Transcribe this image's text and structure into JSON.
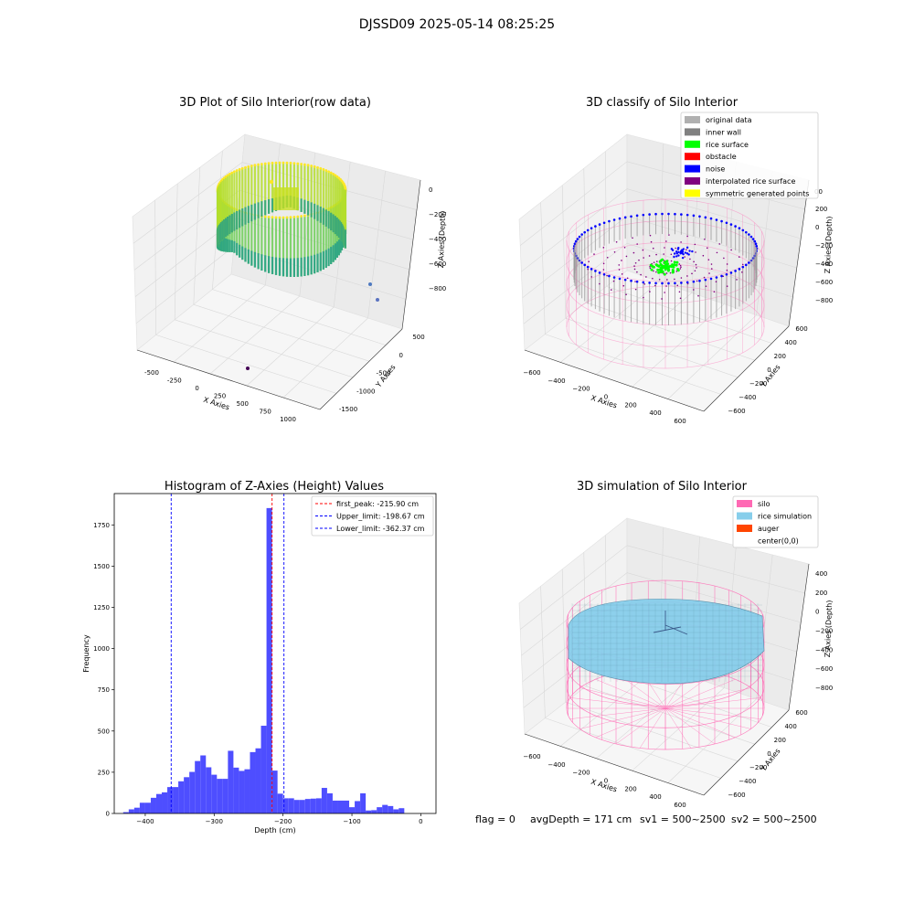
{
  "figure": {
    "suptitle": "DJSSD09 2025-05-14 08:25:25",
    "footer": {
      "flag": "flag = 0",
      "avg_depth": "avgDepth = 171 cm",
      "sv1": "sv1 = 500~2500",
      "sv2": "sv2 = 500~2500"
    }
  },
  "chart_data": [
    {
      "type": "scatter",
      "title": "3D Plot of Silo Interior(row data)",
      "xlabel": "X Axies",
      "ylabel": "Y Axies",
      "zlabel": "Z Axies (Depth)",
      "x_ticks": [
        "-500",
        "-250",
        "0",
        "250",
        "500",
        "750",
        "1000"
      ],
      "y_ticks": [
        "-1500",
        "-1000",
        "-500",
        "0",
        "500"
      ],
      "z_ticks": [
        "0",
        "−200",
        "−400",
        "−600",
        "−800"
      ],
      "colormap": "viridis",
      "outlier_points": [
        {
          "x": 550,
          "y": -1400,
          "z": -1000
        },
        {
          "x": 350,
          "y": 200,
          "z": -620
        },
        {
          "x": 300,
          "y": 400,
          "z": -740
        }
      ]
    },
    {
      "type": "scatter",
      "title": "3D classify of Silo Interior",
      "xlabel": "X Axies",
      "ylabel": "Y Axies",
      "zlabel": "Z Axies (Depth)",
      "x_ticks": [
        "−600",
        "−400",
        "−200",
        "0",
        "200",
        "400",
        "600"
      ],
      "y_ticks": [
        "−600",
        "−400",
        "−200",
        "0",
        "200",
        "400",
        "600"
      ],
      "z_ticks": [
        "200",
        "0",
        "−200",
        "−400",
        "−600",
        "−800"
      ],
      "z_top_partial": "00",
      "legend": [
        {
          "label": "original data",
          "color": "#b0b0b0"
        },
        {
          "label": "inner wall",
          "color": "#808080"
        },
        {
          "label": "rice surface",
          "color": "#00ff00"
        },
        {
          "label": "obstacle",
          "color": "#ff0000"
        },
        {
          "label": "noise",
          "color": "#0000ff"
        },
        {
          "label": "interpolated rice surface",
          "color": "#800080"
        },
        {
          "label": "symmetric generated points",
          "color": "#ffff00"
        }
      ]
    },
    {
      "type": "bar",
      "title": "Histogram of Z-Axies (Height) Values",
      "xlabel": "Depth (cm)",
      "ylabel": "Frequency",
      "xlim": [
        -445,
        22
      ],
      "ylim": [
        0,
        1940
      ],
      "x_ticks": [
        -400,
        -300,
        -200,
        -100,
        0
      ],
      "x_tick_labels": [
        "−400",
        "−300",
        "−200",
        "−100",
        "0"
      ],
      "y_ticks": [
        0,
        250,
        500,
        750,
        1000,
        1250,
        1500,
        1750
      ],
      "bar_color": "#4444ff",
      "bin_start": -432,
      "bin_width": 8,
      "values": [
        8,
        25,
        35,
        65,
        65,
        95,
        118,
        128,
        160,
        160,
        195,
        220,
        252,
        318,
        352,
        280,
        235,
        210,
        210,
        380,
        278,
        258,
        268,
        372,
        395,
        532,
        1852,
        260,
        120,
        92,
        92,
        82,
        82,
        88,
        90,
        92,
        155,
        122,
        78,
        78,
        78,
        38,
        75,
        122,
        18,
        20,
        38,
        52,
        45,
        25,
        32
      ],
      "vlines": [
        {
          "label": "first_peak: -215.90 cm",
          "x": -215.9,
          "color": "#ff0000"
        },
        {
          "label": "Upper_limit: -198.67 cm",
          "x": -198.67,
          "color": "#0000ff"
        },
        {
          "label": "Lower_limit: -362.37 cm",
          "x": -362.37,
          "color": "#0000ff"
        }
      ]
    },
    {
      "type": "scatter",
      "title": "3D simulation of Silo Interior",
      "xlabel": "X Axies",
      "ylabel": "Y Axies",
      "zlabel": "Z Axies (Depth)",
      "x_ticks": [
        "−600",
        "−400",
        "−200",
        "0",
        "200",
        "400",
        "600"
      ],
      "y_ticks": [
        "−600",
        "−400",
        "−200",
        "0",
        "200",
        "400",
        "600"
      ],
      "z_ticks": [
        "400",
        "200",
        "0",
        "−200",
        "−400",
        "−600",
        "−800"
      ],
      "legend": [
        {
          "label": "silo",
          "color": "#ff69b4"
        },
        {
          "label": "rice simulation",
          "color": "#87ceeb"
        },
        {
          "label": "auger",
          "color": "#ff4500"
        },
        {
          "label": "center(0,0)",
          "color": "#ffffff"
        }
      ]
    }
  ]
}
